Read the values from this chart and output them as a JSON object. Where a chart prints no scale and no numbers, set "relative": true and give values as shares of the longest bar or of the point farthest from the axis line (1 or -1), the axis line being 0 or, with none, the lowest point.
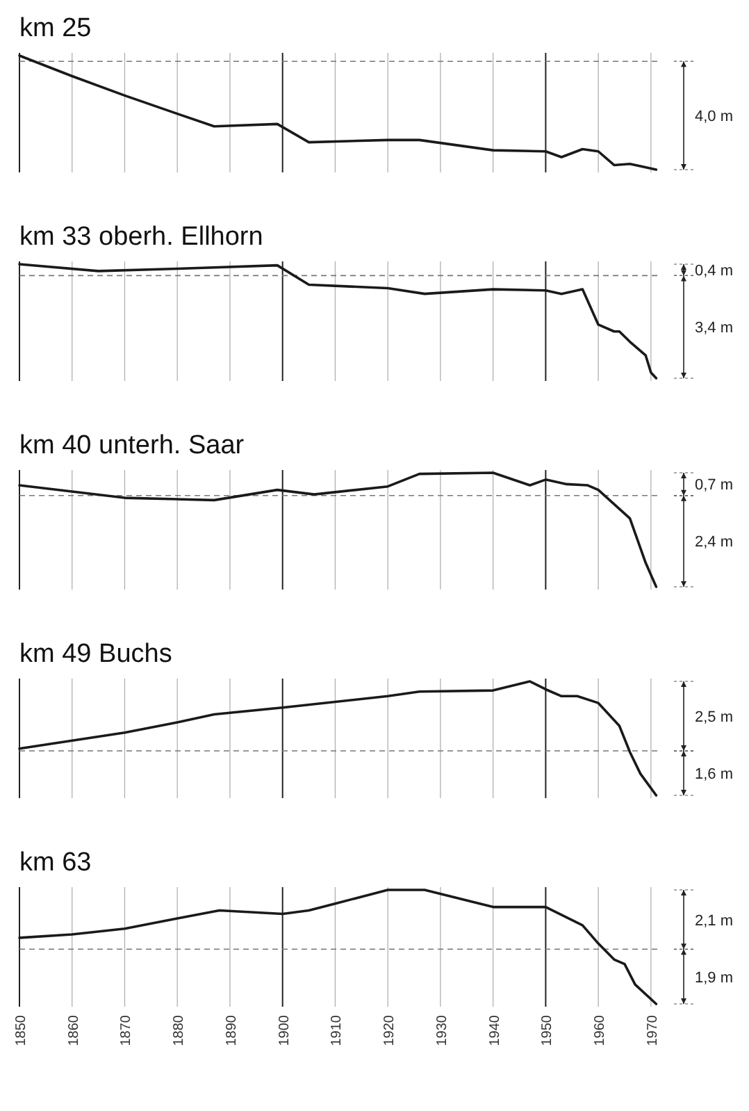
{
  "chart_data": [
    {
      "type": "line",
      "title": "km 25",
      "relative": true,
      "xlim": [
        1850,
        1972
      ],
      "xticks": [
        1850,
        1860,
        1870,
        1880,
        1890,
        1900,
        1910,
        1920,
        1930,
        1940,
        1950,
        1960,
        1970
      ],
      "tick_labels": false,
      "grid": "x",
      "series": [
        {
          "color": "#1a1a1a",
          "x": [
            1850,
            1860,
            1870,
            1880,
            1887,
            1899,
            1905,
            1920,
            1926,
            1940,
            1950,
            1953,
            1957,
            1960,
            1963,
            1966,
            1968,
            1971
          ],
          "values": [
            1.0,
            0.82,
            0.65,
            0.49,
            0.38,
            0.4,
            0.24,
            0.26,
            0.26,
            0.17,
            0.16,
            0.11,
            0.18,
            0.16,
            0.04,
            0.05,
            0.03,
            0
          ]
        }
      ],
      "ref_lines": [
        {
          "axis": "y",
          "value": 0.95,
          "line_style": "dashed"
        }
      ],
      "annotations": [
        "4,0 m"
      ]
    },
    {
      "type": "line",
      "title": "km 33  oberh. Ellhorn",
      "relative": true,
      "xlim": [
        1850,
        1972
      ],
      "xticks": [
        1850,
        1860,
        1870,
        1880,
        1890,
        1900,
        1910,
        1920,
        1930,
        1940,
        1950,
        1960,
        1970
      ],
      "tick_labels": false,
      "grid": "x",
      "series": [
        {
          "color": "#1a1a1a",
          "x": [
            1850,
            1865,
            1880,
            1899,
            1905,
            1920,
            1927,
            1940,
            1950,
            1953,
            1957,
            1960,
            1963,
            1964,
            1966,
            1969,
            1970,
            1971
          ],
          "values": [
            1.0,
            0.94,
            0.96,
            0.99,
            0.82,
            0.79,
            0.74,
            0.78,
            0.77,
            0.74,
            0.78,
            0.47,
            0.41,
            0.41,
            0.32,
            0.2,
            0.05,
            0
          ]
        }
      ],
      "ref_lines": [
        {
          "axis": "y",
          "value": 0.9,
          "line_style": "dashed"
        }
      ],
      "annotations": [
        "0,4 m",
        "3,4 m"
      ]
    },
    {
      "type": "line",
      "title": "km 40  unterh. Saar",
      "relative": true,
      "xlim": [
        1850,
        1972
      ],
      "xticks": [
        1850,
        1860,
        1870,
        1880,
        1890,
        1900,
        1910,
        1920,
        1930,
        1940,
        1950,
        1960,
        1970
      ],
      "tick_labels": false,
      "grid": "x",
      "series": [
        {
          "color": "#1a1a1a",
          "x": [
            1850,
            1870,
            1887,
            1899,
            1906,
            1920,
            1926,
            1940,
            1947,
            1950,
            1954,
            1958,
            1960,
            1966,
            1969,
            1971
          ],
          "values": [
            0.89,
            0.78,
            0.76,
            0.85,
            0.81,
            0.88,
            0.99,
            1.0,
            0.89,
            0.94,
            0.9,
            0.89,
            0.85,
            0.6,
            0.21,
            0
          ]
        }
      ],
      "ref_lines": [
        {
          "axis": "y",
          "value": 0.8,
          "line_style": "dashed"
        }
      ],
      "annotations": [
        "0,7 m",
        "2,4 m"
      ]
    },
    {
      "type": "line",
      "title": "km 49  Buchs",
      "relative": true,
      "xlim": [
        1850,
        1972
      ],
      "xticks": [
        1850,
        1860,
        1870,
        1880,
        1890,
        1900,
        1910,
        1920,
        1930,
        1940,
        1950,
        1960,
        1970
      ],
      "tick_labels": false,
      "grid": "x",
      "series": [
        {
          "color": "#1a1a1a",
          "x": [
            1850,
            1860,
            1870,
            1880,
            1887,
            1900,
            1920,
            1926,
            1940,
            1947,
            1950,
            1953,
            1956,
            1960,
            1964,
            1966,
            1968,
            1971
          ],
          "values": [
            0.41,
            0.48,
            0.55,
            0.64,
            0.71,
            0.77,
            0.87,
            0.91,
            0.92,
            1.0,
            0.93,
            0.87,
            0.87,
            0.81,
            0.61,
            0.38,
            0.19,
            0
          ]
        }
      ],
      "ref_lines": [
        {
          "axis": "y",
          "value": 0.39,
          "line_style": "dashed"
        }
      ],
      "annotations": [
        "2,5 m",
        "1,6 m"
      ]
    },
    {
      "type": "line",
      "title": "km 63",
      "relative": true,
      "xlim": [
        1850,
        1972
      ],
      "xticks": [
        1850,
        1860,
        1870,
        1880,
        1890,
        1900,
        1910,
        1920,
        1930,
        1940,
        1950,
        1960,
        1970
      ],
      "tick_labels": "x",
      "grid": "x",
      "series": [
        {
          "color": "#1a1a1a",
          "x": [
            1850,
            1860,
            1870,
            1880,
            1888,
            1900,
            1905,
            1910,
            1920,
            1927,
            1940,
            1950,
            1957,
            1960,
            1963,
            1965,
            1967,
            1971
          ],
          "values": [
            0.58,
            0.61,
            0.66,
            0.75,
            0.82,
            0.79,
            0.82,
            0.88,
            1.0,
            1.0,
            0.85,
            0.85,
            0.69,
            0.53,
            0.39,
            0.35,
            0.17,
            0
          ]
        }
      ],
      "ref_lines": [
        {
          "axis": "y",
          "value": 0.48,
          "line_style": "dashed"
        }
      ],
      "annotations": [
        "2,1 m",
        "1,9 m"
      ]
    }
  ]
}
